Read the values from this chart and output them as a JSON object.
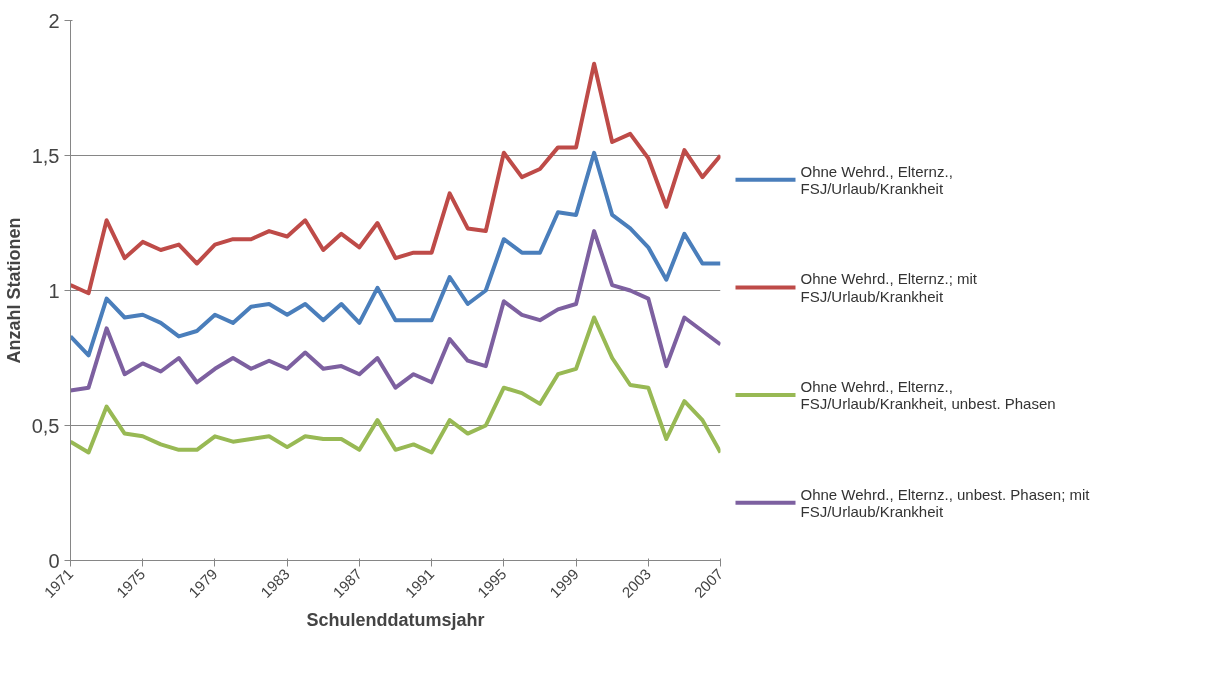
{
  "chart_data": {
    "type": "line",
    "xlabel": "Schulenddatumsjahr",
    "ylabel": "Anzahl Stationen",
    "x": [
      1971,
      1972,
      1973,
      1974,
      1975,
      1976,
      1977,
      1978,
      1979,
      1980,
      1981,
      1982,
      1983,
      1984,
      1985,
      1986,
      1987,
      1988,
      1989,
      1990,
      1991,
      1992,
      1993,
      1994,
      1995,
      1996,
      1997,
      1998,
      1999,
      2000,
      2001,
      2002,
      2003,
      2004,
      2005,
      2006,
      2007
    ],
    "xlim": [
      1971,
      2007
    ],
    "xticks": [
      1971,
      1975,
      1979,
      1983,
      1987,
      1991,
      1995,
      1999,
      2003,
      2007
    ],
    "ylim": [
      0,
      2
    ],
    "yticks": [
      0,
      {
        "value": 0.5,
        "label": "0,5"
      },
      1,
      {
        "value": 1.5,
        "label": "1,5"
      },
      2
    ],
    "grid": "y",
    "legend": "right",
    "marker": "none",
    "line_style": "solid",
    "series": [
      {
        "name": "Ohne Wehrd., Elternz., FSJ/Urlaub/Krankheit",
        "color": "#4a7ebb",
        "values": [
          0.83,
          0.76,
          0.97,
          0.9,
          0.91,
          0.88,
          0.83,
          0.85,
          0.91,
          0.88,
          0.94,
          0.95,
          0.91,
          0.95,
          0.89,
          0.95,
          0.88,
          1.01,
          0.89,
          0.89,
          0.89,
          1.05,
          0.95,
          1.0,
          1.19,
          1.14,
          1.14,
          1.29,
          1.28,
          1.51,
          1.28,
          1.23,
          1.16,
          1.04,
          1.21,
          1.1,
          1.1
        ]
      },
      {
        "name": "Ohne Wehrd., Elternz.; mit FSJ/Urlaub/Krankheit",
        "color": "#be4b48",
        "values": [
          1.02,
          0.99,
          1.26,
          1.12,
          1.18,
          1.15,
          1.17,
          1.1,
          1.17,
          1.19,
          1.19,
          1.22,
          1.2,
          1.26,
          1.15,
          1.21,
          1.16,
          1.25,
          1.12,
          1.14,
          1.14,
          1.36,
          1.23,
          1.22,
          1.51,
          1.42,
          1.45,
          1.53,
          1.53,
          1.84,
          1.55,
          1.58,
          1.49,
          1.31,
          1.52,
          1.42,
          1.5
        ]
      },
      {
        "name": "Ohne Wehrd., Elternz., FSJ/Urlaub/Krankheit, unbest. Phasen",
        "color": "#98b954",
        "values": [
          0.44,
          0.4,
          0.57,
          0.47,
          0.46,
          0.43,
          0.41,
          0.41,
          0.46,
          0.44,
          0.45,
          0.46,
          0.42,
          0.46,
          0.45,
          0.45,
          0.41,
          0.52,
          0.41,
          0.43,
          0.4,
          0.52,
          0.47,
          0.5,
          0.64,
          0.62,
          0.58,
          0.69,
          0.71,
          0.9,
          0.75,
          0.65,
          0.64,
          0.45,
          0.59,
          0.52,
          0.4
        ]
      },
      {
        "name": "Ohne Wehrd., Elternz., unbest. Phasen; mit FSJ/Urlaub/Krankheit",
        "color": "#7d60a0",
        "values": [
          0.63,
          0.64,
          0.86,
          0.69,
          0.73,
          0.7,
          0.75,
          0.66,
          0.71,
          0.75,
          0.71,
          0.74,
          0.71,
          0.77,
          0.71,
          0.72,
          0.69,
          0.75,
          0.64,
          0.69,
          0.66,
          0.82,
          0.74,
          0.72,
          0.96,
          0.91,
          0.89,
          0.93,
          0.95,
          1.22,
          1.02,
          1.0,
          0.97,
          0.72,
          0.9,
          0.85,
          0.8
        ]
      }
    ]
  }
}
